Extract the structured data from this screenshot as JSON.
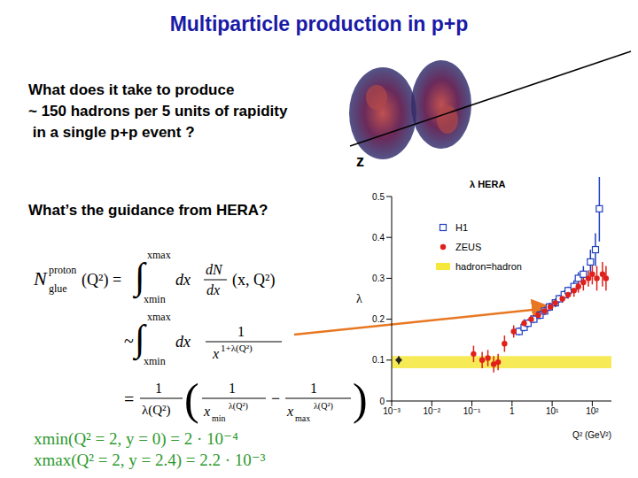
{
  "title": "Multiparticle production in p+p",
  "questions": [
    "What does it take to produce",
    "~ 150 hadrons per 5 units of rapidity",
    " in a single p+p event ?"
  ],
  "guidance": "What’s the guidance from HERA?",
  "event_axis_label": "z",
  "formula": {
    "lhs": {
      "symbol": "N",
      "sup": "proton",
      "sub": "glue",
      "arg": "(Q²) ="
    },
    "integral": {
      "sign": "∫",
      "upper": "xmax",
      "lower": "xmin"
    },
    "line1": {
      "dx": "dx",
      "num": "dN",
      "den": "dx",
      "tail": "(x, Q²)"
    },
    "line2": {
      "lead": "~",
      "dx": "dx",
      "num": "1",
      "den_base": "x",
      "den_exp": "1+λ(Q²)"
    },
    "line3": {
      "lead": "=",
      "num": "1",
      "den": "λ(Q²)",
      "open": "(",
      "close": ")",
      "minus": "−",
      "inner_num": "1",
      "base": "x",
      "sub_min": "min",
      "sub_max": "max",
      "exp": "λ(Q²)"
    }
  },
  "limits": [
    "xmin(Q² = 2, y = 0) = 2 · 10⁻⁴",
    "xmax(Q² = 2, y = 2.4) = 2.2 · 10⁻³"
  ],
  "chart_data": {
    "type": "scatter",
    "title": "λ HERA",
    "x_label": "Q² (GeV²)",
    "y_label": "λ",
    "log": "x",
    "xlim": [
      0.001,
      300
    ],
    "xticks": [
      {
        "value": 0.001,
        "label": "10⁻³"
      },
      {
        "value": 0.01,
        "label": "10⁻²"
      },
      {
        "value": 0.1,
        "label": "10⁻¹"
      },
      1,
      {
        "value": 10,
        "label": "10¹"
      },
      {
        "value": 100,
        "label": "10²"
      }
    ],
    "ylim": [
      0,
      0.5
    ],
    "yticks": [
      0,
      0.1,
      0.2,
      0.3,
      0.4,
      0.5
    ],
    "series": [
      {
        "name": "H1",
        "color": "#1f3fbf",
        "marker": "open_square",
        "x": [
          1.5,
          2,
          2.5,
          3.5,
          5,
          6.5,
          8.5,
          12,
          15,
          20,
          25,
          35,
          45,
          60,
          90,
          120,
          150
        ],
        "values": [
          0.17,
          0.18,
          0.19,
          0.2,
          0.21,
          0.22,
          0.23,
          0.24,
          0.25,
          0.26,
          0.27,
          0.28,
          0.3,
          0.31,
          0.34,
          0.37,
          0.47
        ],
        "errors": [
          0.01,
          0.01,
          0.01,
          0.01,
          0.01,
          0.01,
          0.01,
          0.01,
          0.01,
          0.01,
          0.01,
          0.015,
          0.015,
          0.02,
          0.03,
          0.04,
          0.08
        ]
      },
      {
        "name": "ZEUS",
        "color": "#e0201b",
        "marker": "circle",
        "x": [
          0.11,
          0.18,
          0.25,
          0.35,
          0.45,
          0.65,
          1.1,
          2,
          3,
          4.5,
          6.5,
          9,
          12,
          18,
          25,
          35,
          45,
          60,
          80,
          100,
          130,
          180,
          220
        ],
        "values": [
          0.115,
          0.1,
          0.105,
          0.09,
          0.095,
          0.14,
          0.17,
          0.19,
          0.2,
          0.21,
          0.22,
          0.23,
          0.24,
          0.25,
          0.26,
          0.27,
          0.28,
          0.29,
          0.3,
          0.31,
          0.3,
          0.31,
          0.3
        ],
        "errors": [
          0.02,
          0.02,
          0.02,
          0.02,
          0.02,
          0.02,
          0.015,
          0.01,
          0.01,
          0.01,
          0.01,
          0.01,
          0.01,
          0.01,
          0.01,
          0.015,
          0.015,
          0.02,
          0.02,
          0.025,
          0.03,
          0.03,
          0.03
        ]
      },
      {
        "name": "hadron=hadron",
        "color": "#f5e83a",
        "marker": "diamond",
        "x": [
          0.0015
        ],
        "values": [
          0.1
        ],
        "errors": [
          0.01
        ],
        "band": [
          0.08,
          0.11
        ]
      }
    ]
  }
}
